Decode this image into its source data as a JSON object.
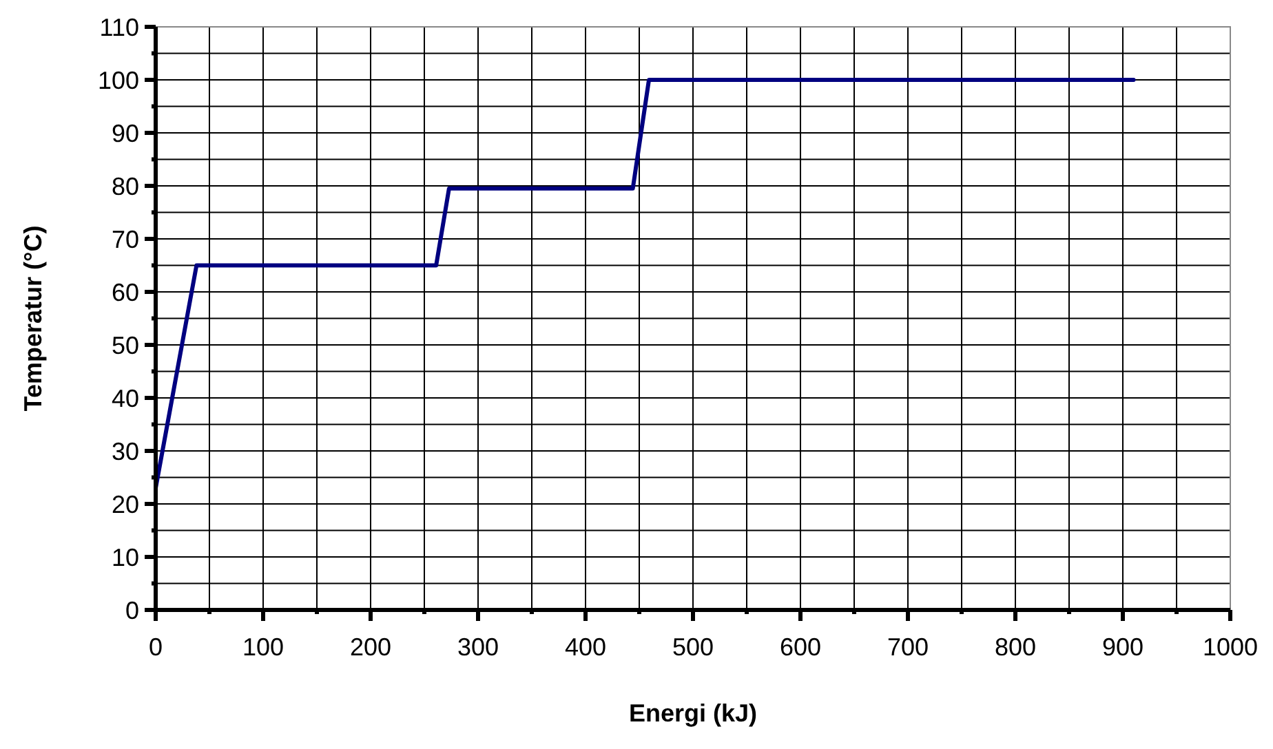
{
  "chart_data": {
    "type": "line",
    "xlabel": "Energi (kJ)",
    "ylabel": "Temperatur (°C)",
    "x": [
      0,
      38,
      261,
      273,
      444,
      459,
      910
    ],
    "series": [
      {
        "color": "#000080",
        "values": [
          23,
          65,
          65,
          79.5,
          79.5,
          100,
          100
        ]
      }
    ],
    "xlim": [
      0,
      1000
    ],
    "ylim": [
      0,
      110
    ],
    "xticks": [
      0,
      {
        "value": 50,
        "label": null
      },
      100,
      {
        "value": 150,
        "label": null
      },
      200,
      {
        "value": 250,
        "label": null
      },
      300,
      {
        "value": 350,
        "label": null
      },
      400,
      {
        "value": 450,
        "label": null
      },
      500,
      {
        "value": 550,
        "label": null
      },
      600,
      {
        "value": 650,
        "label": null
      },
      700,
      {
        "value": 750,
        "label": null
      },
      800,
      {
        "value": 850,
        "label": null
      },
      900,
      {
        "value": 950,
        "label": null
      },
      1000
    ],
    "yticks": [
      0,
      {
        "value": 5,
        "label": null
      },
      10,
      {
        "value": 15,
        "label": null
      },
      20,
      {
        "value": 25,
        "label": null
      },
      30,
      {
        "value": 35,
        "label": null
      },
      40,
      {
        "value": 45,
        "label": null
      },
      50,
      {
        "value": 55,
        "label": null
      },
      60,
      {
        "value": 65,
        "label": null
      },
      70,
      {
        "value": 75,
        "label": null
      },
      80,
      {
        "value": 85,
        "label": null
      },
      90,
      {
        "value": 95,
        "label": null
      },
      100,
      {
        "value": 105,
        "label": null
      },
      110
    ],
    "grid": true,
    "marker": "none",
    "line_style": "solid"
  }
}
